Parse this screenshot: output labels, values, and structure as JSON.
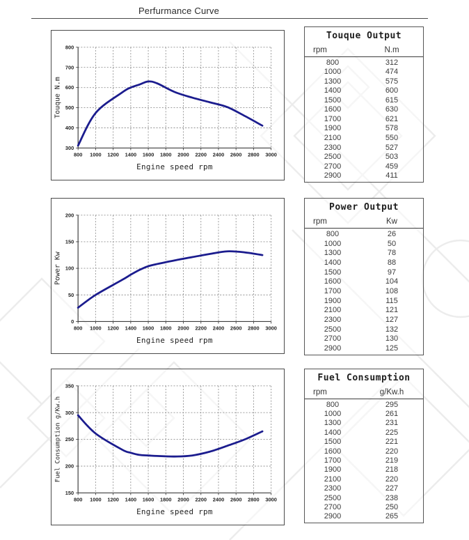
{
  "page": {
    "title": "Perfurmance Curve"
  },
  "colors": {
    "curve": "#1b1c8e",
    "grid": "#8f8f8f",
    "axis": "#3f3f3f",
    "text": "#222222",
    "watermark": "#ececec"
  },
  "tables": [
    {
      "title": "Touque Output",
      "col1": "rpm",
      "col2": "N.m",
      "rows": [
        [
          800,
          312
        ],
        [
          1000,
          474
        ],
        [
          1300,
          575
        ],
        [
          1400,
          600
        ],
        [
          1500,
          615
        ],
        [
          1600,
          630
        ],
        [
          1700,
          621
        ],
        [
          1900,
          578
        ],
        [
          2100,
          550
        ],
        [
          2300,
          527
        ],
        [
          2500,
          503
        ],
        [
          2700,
          459
        ],
        [
          2900,
          411
        ]
      ]
    },
    {
      "title": "Power Output",
      "col1": "rpm",
      "col2": "Kw",
      "rows": [
        [
          800,
          26
        ],
        [
          1000,
          50
        ],
        [
          1300,
          78
        ],
        [
          1400,
          88
        ],
        [
          1500,
          97
        ],
        [
          1600,
          104
        ],
        [
          1700,
          108
        ],
        [
          1900,
          115
        ],
        [
          2100,
          121
        ],
        [
          2300,
          127
        ],
        [
          2500,
          132
        ],
        [
          2700,
          130
        ],
        [
          2900,
          125
        ]
      ]
    },
    {
      "title": "Fuel Consumption",
      "col1": "rpm",
      "col2": "g/Kw.h",
      "rows": [
        [
          800,
          295
        ],
        [
          1000,
          261
        ],
        [
          1300,
          231
        ],
        [
          1400,
          225
        ],
        [
          1500,
          221
        ],
        [
          1600,
          220
        ],
        [
          1700,
          219
        ],
        [
          1900,
          218
        ],
        [
          2100,
          220
        ],
        [
          2300,
          227
        ],
        [
          2500,
          238
        ],
        [
          2700,
          250
        ],
        [
          2900,
          265
        ]
      ]
    }
  ],
  "chart_data": [
    {
      "type": "line",
      "title": "Torque curve",
      "x": [
        800,
        1000,
        1300,
        1400,
        1500,
        1600,
        1700,
        1900,
        2100,
        2300,
        2500,
        2700,
        2900
      ],
      "values": [
        312,
        474,
        575,
        600,
        615,
        630,
        621,
        578,
        550,
        527,
        503,
        459,
        411
      ],
      "xlabel": "Engine speed rpm",
      "ylabel": "Touque N.m",
      "xlim": [
        800,
        3000
      ],
      "ylim": [
        300,
        800
      ],
      "xticks": [
        800,
        1000,
        1200,
        1400,
        1600,
        1800,
        2000,
        2200,
        2400,
        2600,
        2800,
        3000
      ],
      "yticks": [
        300,
        400,
        500,
        600,
        700,
        800
      ],
      "grid": true,
      "legend": "none"
    },
    {
      "type": "line",
      "title": "Power curve",
      "x": [
        800,
        1000,
        1300,
        1400,
        1500,
        1600,
        1700,
        1900,
        2100,
        2300,
        2500,
        2700,
        2900
      ],
      "values": [
        26,
        50,
        78,
        88,
        97,
        104,
        108,
        115,
        121,
        127,
        132,
        130,
        125
      ],
      "xlabel": "Engine speed rpm",
      "ylabel": "Power Kw",
      "xlim": [
        800,
        3000
      ],
      "ylim": [
        0,
        200
      ],
      "xticks": [
        800,
        1000,
        1200,
        1400,
        1600,
        1800,
        2000,
        2200,
        2400,
        2600,
        2800,
        3000
      ],
      "yticks": [
        0,
        50,
        100,
        150,
        200
      ],
      "grid": true,
      "legend": "none"
    },
    {
      "type": "line",
      "title": "Fuel consumption curve",
      "x": [
        800,
        1000,
        1300,
        1400,
        1500,
        1600,
        1700,
        1900,
        2100,
        2300,
        2500,
        2700,
        2900
      ],
      "values": [
        295,
        261,
        231,
        225,
        221,
        220,
        219,
        218,
        220,
        227,
        238,
        250,
        265
      ],
      "xlabel": "Engine speed rpm",
      "ylabel": "Fuel Consumption g/Kw.h",
      "xlim": [
        800,
        3000
      ],
      "ylim": [
        150,
        350
      ],
      "xticks": [
        800,
        1000,
        1200,
        1400,
        1600,
        1800,
        2000,
        2200,
        2400,
        2600,
        2800,
        3000
      ],
      "yticks": [
        150,
        200,
        250,
        300,
        350
      ],
      "grid": true,
      "legend": "none"
    }
  ]
}
